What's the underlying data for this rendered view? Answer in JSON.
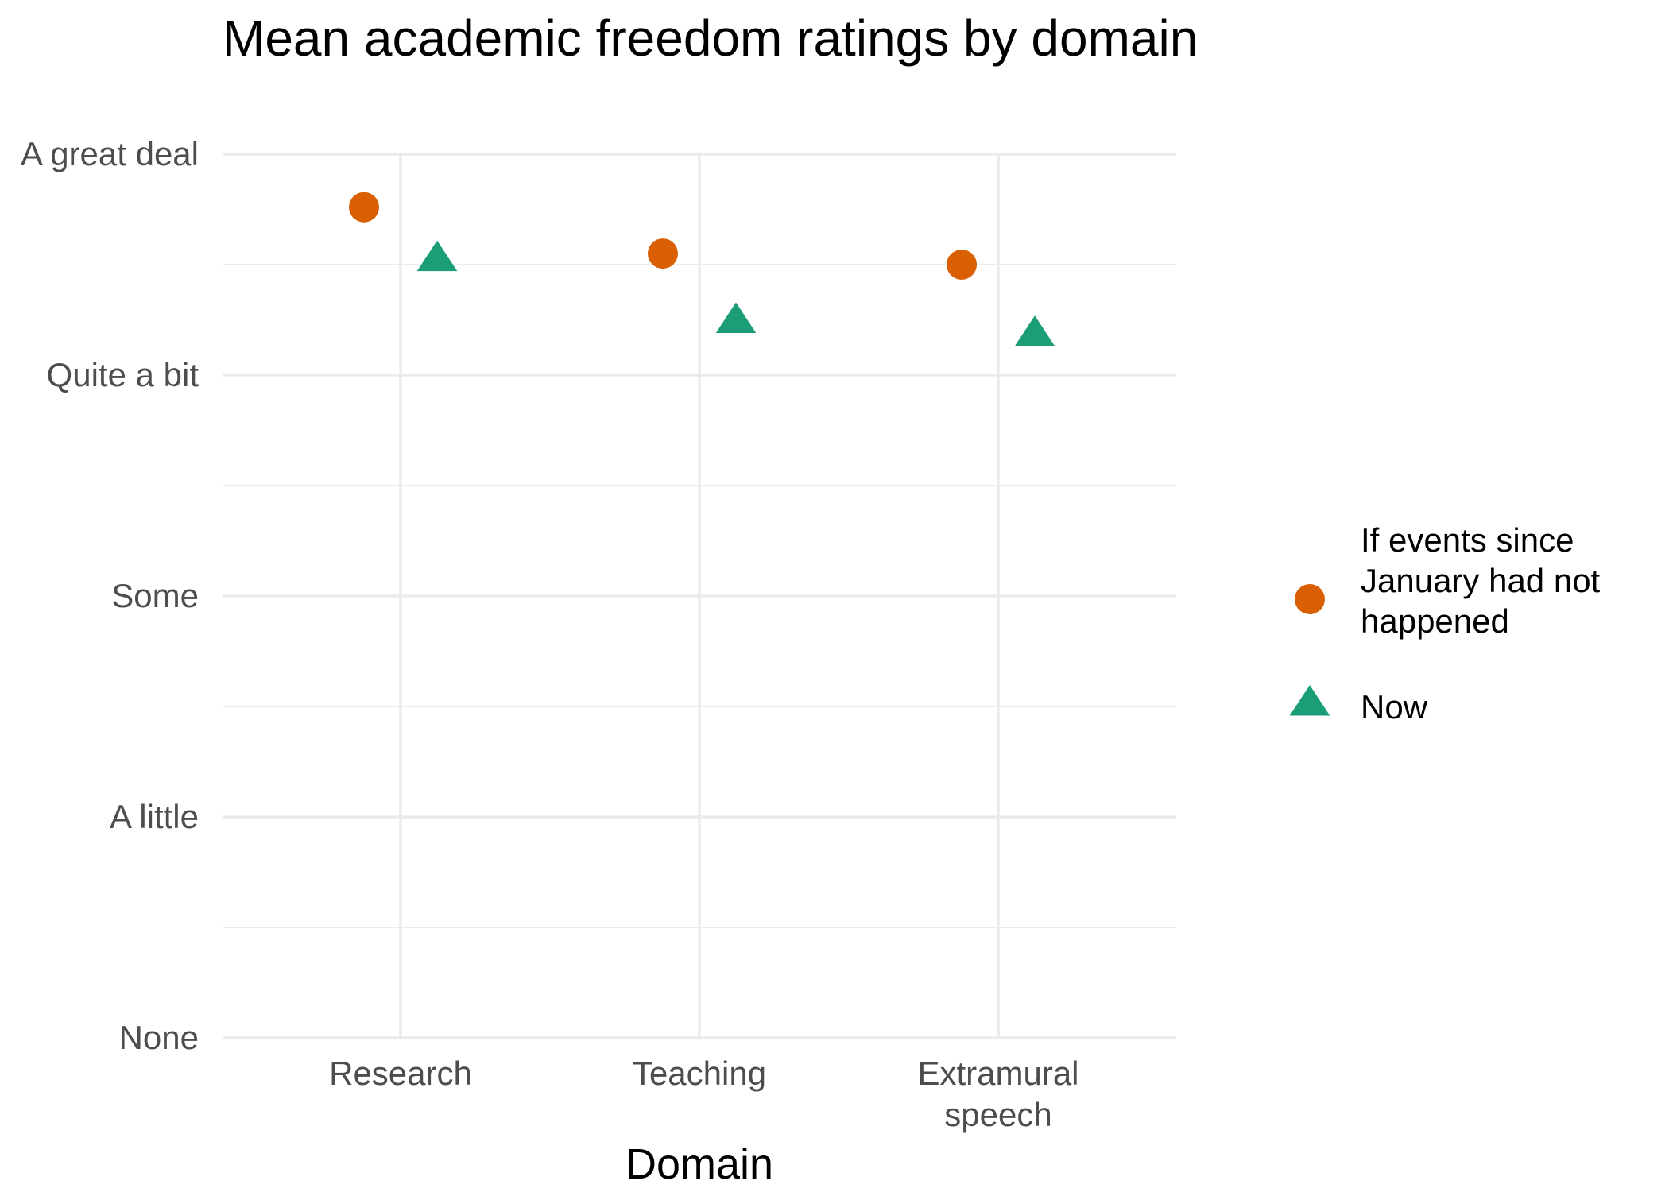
{
  "chart_data": {
    "type": "scatter",
    "title": "Mean academic freedom ratings by domain",
    "xlabel": "Domain",
    "ylabel": "",
    "categories": [
      [
        "Research"
      ],
      [
        "Teaching"
      ],
      [
        "Extramural",
        "speech"
      ]
    ],
    "y_levels": [
      "None",
      "A little",
      "Some",
      "Quite a bit",
      "A great deal"
    ],
    "ylim": [
      0,
      4
    ],
    "grid": true,
    "legend_position": "right",
    "series": [
      {
        "name": [
          "If events since",
          "January had not",
          "happened"
        ],
        "shape": "circle",
        "color": "#D95F02",
        "values": [
          3.76,
          3.55,
          3.5
        ]
      },
      {
        "name": [
          "Now"
        ],
        "shape": "triangle",
        "color": "#1B9E77",
        "values": [
          3.53,
          3.25,
          3.19
        ]
      }
    ]
  }
}
